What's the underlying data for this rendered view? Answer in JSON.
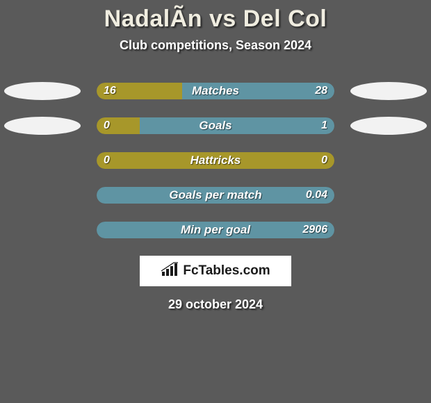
{
  "title": "NadalÃ­n vs Del Col",
  "subtitle": "Club competitions, Season 2024",
  "date": "29 october 2024",
  "logo": "FcTables.com",
  "colors": {
    "left_fill": "#a7972a",
    "right_fill": "#5f94a3",
    "neutral_fill": "#5f94a3",
    "background": "#5a5a5a"
  },
  "rows": [
    {
      "label": "Matches",
      "left_value": "16",
      "right_value": "28",
      "left_pct": 36,
      "right_pct": 64,
      "left_color": "#a7972a",
      "right_color": "#5f94a3",
      "show_ellipses": true
    },
    {
      "label": "Goals",
      "left_value": "0",
      "right_value": "1",
      "left_pct": 18,
      "right_pct": 82,
      "left_color": "#a7972a",
      "right_color": "#5f94a3",
      "show_ellipses": true
    },
    {
      "label": "Hattricks",
      "left_value": "0",
      "right_value": "0",
      "left_pct": 100,
      "right_pct": 0,
      "left_color": "#a7972a",
      "right_color": "#a7972a",
      "show_ellipses": false
    },
    {
      "label": "Goals per match",
      "left_value": "",
      "right_value": "0.04",
      "left_pct": 0,
      "right_pct": 100,
      "left_color": "#5f94a3",
      "right_color": "#5f94a3",
      "show_ellipses": false
    },
    {
      "label": "Min per goal",
      "left_value": "",
      "right_value": "2906",
      "left_pct": 0,
      "right_pct": 100,
      "left_color": "#5f94a3",
      "right_color": "#5f94a3",
      "show_ellipses": false
    }
  ]
}
